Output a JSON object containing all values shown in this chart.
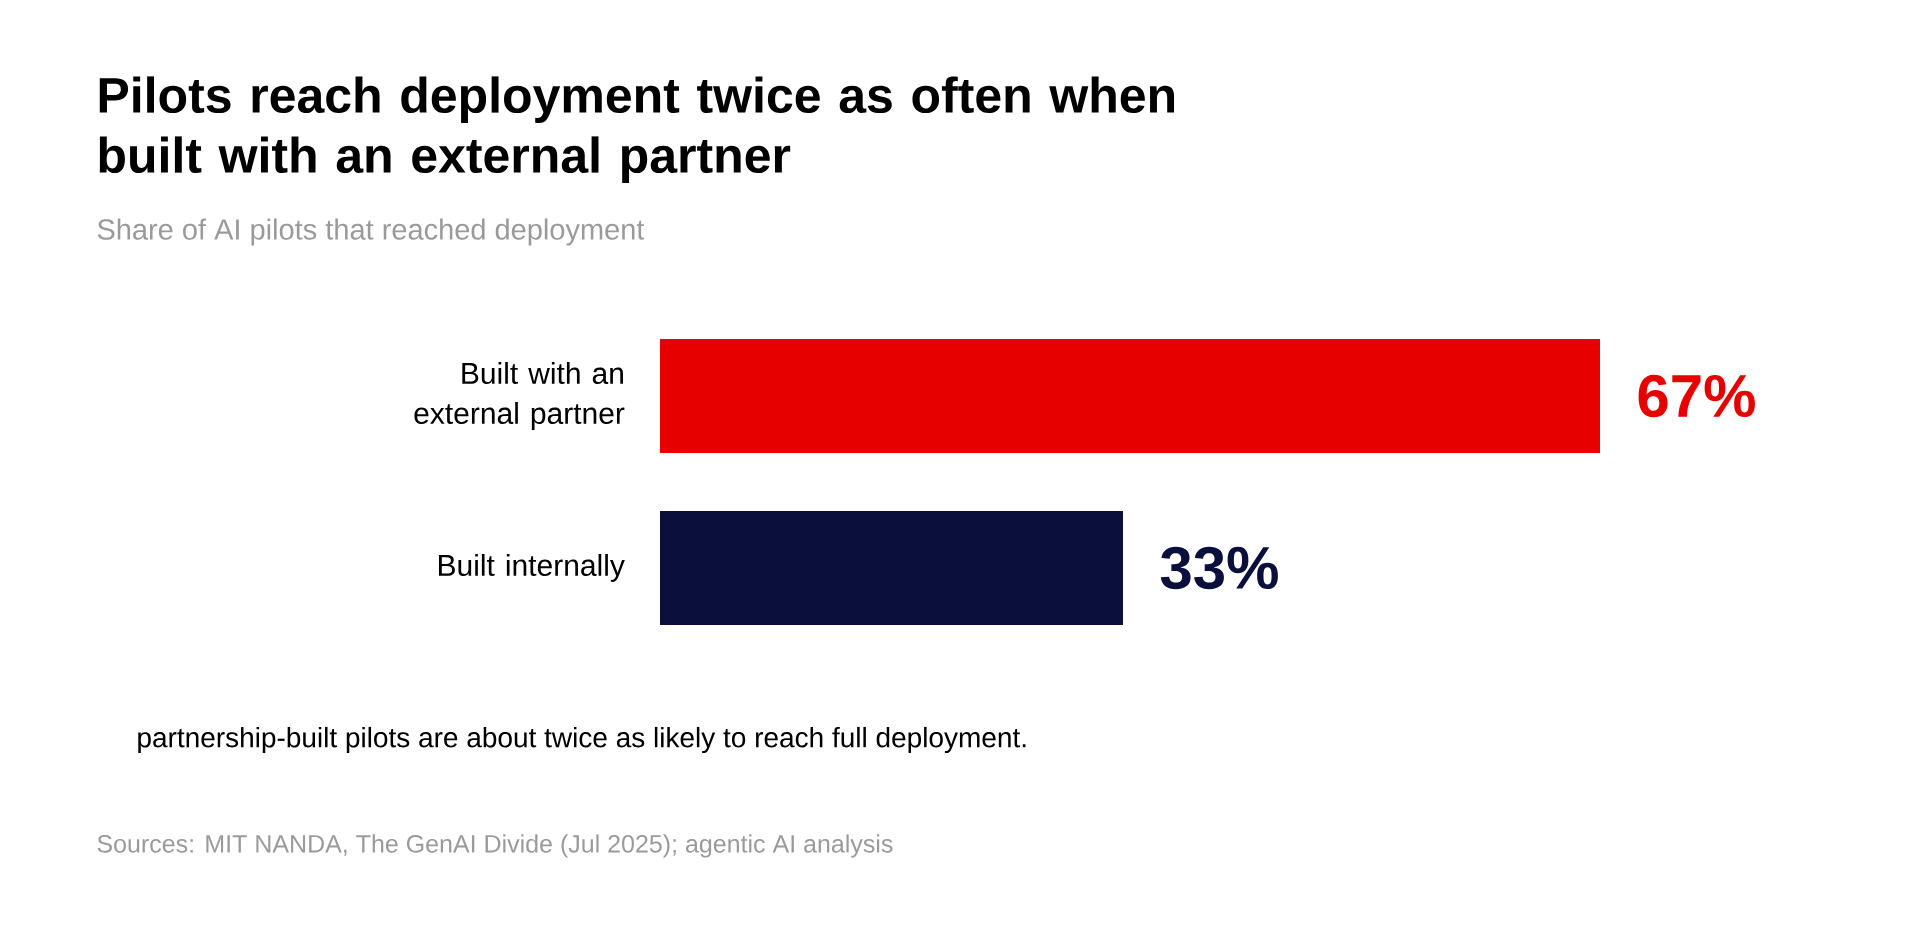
{
  "chart_data": {
    "type": "bar",
    "orientation": "horizontal",
    "title": "Pilots reach deployment twice as often when built with an external partner",
    "subtitle": "Share of AI pilots that reached deployment",
    "categories": [
      "Built with an external partner",
      "Built internally"
    ],
    "values": [
      67,
      33
    ],
    "colors": [
      "#e60000",
      "#0a0f3c"
    ],
    "value_labels": [
      "67%",
      "33%"
    ],
    "annotations": [
      "partnership-built pilots are about twice as likely to reach full deployment.",
      "Sources: MIT NANDA, The GenAI Divide (Jul 2025); agentic AI analysis"
    ]
  }
}
